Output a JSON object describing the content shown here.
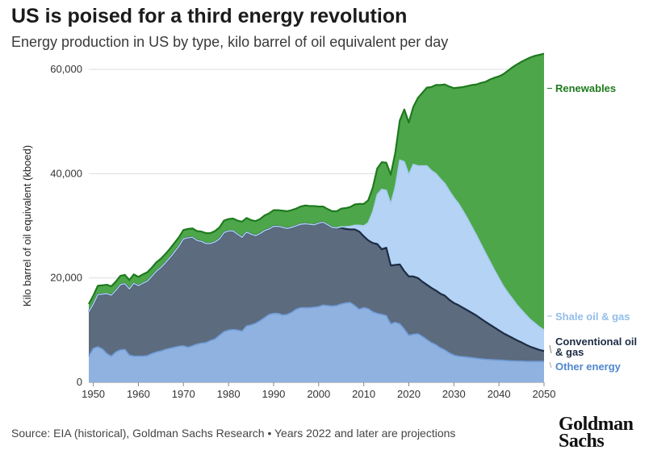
{
  "header": {
    "title": "US is poised for a third energy revolution",
    "subtitle": "Energy production in US by type, kilo barrel of oil equivalent per day"
  },
  "footer": {
    "source": "Source: EIA (historical), Goldman Sachs Research • Years 2022 and later are projections",
    "logo_line1": "Goldman",
    "logo_line2": "Sachs"
  },
  "colors": {
    "other": "#8fb2e0",
    "conventional": "#5c6b7e",
    "shale": "#b4d3f5",
    "renewables": "#4ea64a",
    "conventional_line": "#1c2c44",
    "renewables_line": "#1e7a1e",
    "shale_line": "#a9cdf2",
    "other_line": "#6f9ad6",
    "renewables_label": "#1e7a1e",
    "shale_label": "#92bde9",
    "conventional_label": "#1c2c44",
    "other_label": "#4f86cf"
  },
  "chart_data": {
    "type": "area",
    "stacked": true,
    "ylabel": "Kilo barrel of oil equivalent (kboed)",
    "xlabel": "",
    "xlim": [
      1949,
      2050
    ],
    "ylim": [
      0,
      60000
    ],
    "xticks": [
      "1950",
      "1960",
      "1970",
      "1980",
      "1990",
      "2000",
      "2010",
      "2020",
      "2030",
      "2040",
      "2050"
    ],
    "yticks": [
      "0",
      "20,000",
      "40,000",
      "60,000"
    ],
    "grid": "horizontal",
    "x": [
      1949,
      1950,
      1951,
      1952,
      1953,
      1954,
      1955,
      1956,
      1957,
      1958,
      1959,
      1960,
      1961,
      1962,
      1963,
      1964,
      1965,
      1966,
      1967,
      1968,
      1969,
      1970,
      1971,
      1972,
      1973,
      1974,
      1975,
      1976,
      1977,
      1978,
      1979,
      1980,
      1981,
      1982,
      1983,
      1984,
      1985,
      1986,
      1987,
      1988,
      1989,
      1990,
      1991,
      1992,
      1993,
      1994,
      1995,
      1996,
      1997,
      1998,
      1999,
      2000,
      2001,
      2002,
      2003,
      2004,
      2005,
      2006,
      2007,
      2008,
      2009,
      2010,
      2011,
      2012,
      2013,
      2014,
      2015,
      2016,
      2017,
      2018,
      2019,
      2020,
      2021,
      2022,
      2023,
      2024,
      2025,
      2026,
      2027,
      2028,
      2029,
      2030,
      2031,
      2032,
      2033,
      2034,
      2035,
      2036,
      2037,
      2038,
      2039,
      2040,
      2041,
      2042,
      2043,
      2044,
      2045,
      2046,
      2047,
      2048,
      2049,
      2050
    ],
    "series": [
      {
        "name": "Other energy",
        "values": [
          5000,
          6500,
          6800,
          6400,
          5500,
          5000,
          5800,
          6200,
          6300,
          5200,
          5000,
          5000,
          5000,
          5100,
          5500,
          5800,
          6000,
          6300,
          6500,
          6700,
          6900,
          7000,
          6700,
          7000,
          7300,
          7500,
          7600,
          8000,
          8300,
          9000,
          9700,
          10000,
          10100,
          10000,
          9800,
          10800,
          11000,
          11300,
          11800,
          12400,
          13000,
          13200,
          13200,
          12900,
          13000,
          13400,
          14000,
          14300,
          14300,
          14300,
          14400,
          14500,
          14800,
          14700,
          14600,
          14700,
          15000,
          15200,
          15300,
          14700,
          14000,
          14300,
          14100,
          13500,
          13200,
          13000,
          12800,
          11200,
          11500,
          11200,
          10200,
          9000,
          9200,
          9300,
          8800,
          8200,
          7600,
          7200,
          6600,
          6200,
          5600,
          5200,
          5000,
          4900,
          4800,
          4700,
          4600,
          4500,
          4400,
          4350,
          4300,
          4250,
          4200,
          4150,
          4100,
          4050,
          4050,
          4000,
          4000,
          4000,
          4000,
          4000
        ]
      },
      {
        "name": "Conventional oil & gas",
        "values": [
          8500,
          8500,
          10000,
          10500,
          11500,
          11700,
          11800,
          12500,
          12600,
          12700,
          14000,
          13500,
          14000,
          14300,
          14800,
          15500,
          16000,
          16600,
          17400,
          18300,
          19200,
          20500,
          21000,
          20800,
          19900,
          19500,
          19000,
          18600,
          18600,
          18500,
          19000,
          19000,
          18900,
          18400,
          18000,
          18000,
          17400,
          16800,
          16700,
          16700,
          16400,
          16700,
          16700,
          16800,
          16500,
          16300,
          16000,
          16000,
          16100,
          16000,
          15800,
          16000,
          15900,
          15500,
          15100,
          14900,
          14600,
          14200,
          14000,
          14600,
          14900,
          13700,
          13100,
          13200,
          13300,
          12500,
          13000,
          11200,
          11000,
          11400,
          11100,
          11300,
          11100,
          10700,
          10500,
          10500,
          10500,
          10400,
          10400,
          10400,
          10200,
          10000,
          9800,
          9400,
          9000,
          8600,
          8200,
          7700,
          7200,
          6700,
          6200,
          5700,
          5200,
          4800,
          4400,
          4000,
          3600,
          3200,
          2800,
          2500,
          2200,
          2000
        ]
      },
      {
        "name": "Shale oil & gas",
        "values": [
          0,
          0,
          0,
          0,
          0,
          0,
          0,
          0,
          0,
          0,
          0,
          0,
          0,
          0,
          0,
          0,
          0,
          0,
          0,
          0,
          0,
          0,
          0,
          0,
          0,
          0,
          0,
          0,
          0,
          0,
          0,
          0,
          0,
          0,
          0,
          0,
          0,
          0,
          0,
          0,
          0,
          0,
          0,
          0,
          0,
          0,
          0,
          0,
          0,
          0,
          0,
          0,
          0,
          0,
          0,
          0,
          200,
          400,
          600,
          800,
          1200,
          2000,
          3400,
          6000,
          9500,
          11500,
          11000,
          11800,
          15000,
          20000,
          21000,
          19500,
          21500,
          21500,
          22200,
          22800,
          22500,
          22400,
          22000,
          21500,
          20900,
          20200,
          19500,
          18600,
          17600,
          16500,
          15400,
          14300,
          13200,
          12100,
          11000,
          10000,
          9000,
          8200,
          7500,
          6800,
          6200,
          5700,
          5200,
          4800,
          4400,
          4000
        ]
      },
      {
        "name": "Renewables",
        "values": [
          1500,
          1600,
          1700,
          1700,
          1700,
          1700,
          1700,
          1700,
          1700,
          1700,
          1700,
          1700,
          1700,
          1700,
          1700,
          1700,
          1700,
          1700,
          1700,
          1700,
          1700,
          1700,
          1700,
          1700,
          1800,
          1900,
          2000,
          2000,
          2100,
          2200,
          2300,
          2300,
          2400,
          2600,
          3000,
          2700,
          2700,
          2800,
          2800,
          2900,
          3000,
          3100,
          3100,
          3200,
          3300,
          3300,
          3300,
          3400,
          3500,
          3500,
          3600,
          3200,
          3000,
          3000,
          3100,
          3200,
          3500,
          3600,
          3700,
          4000,
          4100,
          4200,
          4300,
          4600,
          5000,
          5200,
          5300,
          5600,
          6500,
          7600,
          10000,
          10000,
          11000,
          13000,
          14000,
          15000,
          16000,
          17000,
          18000,
          19000,
          20000,
          21000,
          22200,
          23700,
          25400,
          27200,
          28900,
          30900,
          32800,
          34900,
          36900,
          38700,
          40700,
          42600,
          44400,
          46100,
          47600,
          49000,
          50300,
          51300,
          52200,
          53000
        ]
      }
    ],
    "series_labels": {
      "renewables": "Renewables",
      "shale": "Shale oil & gas",
      "conventional_l1": "Conventional oil",
      "conventional_l2": "& gas",
      "other": "Other energy"
    }
  }
}
